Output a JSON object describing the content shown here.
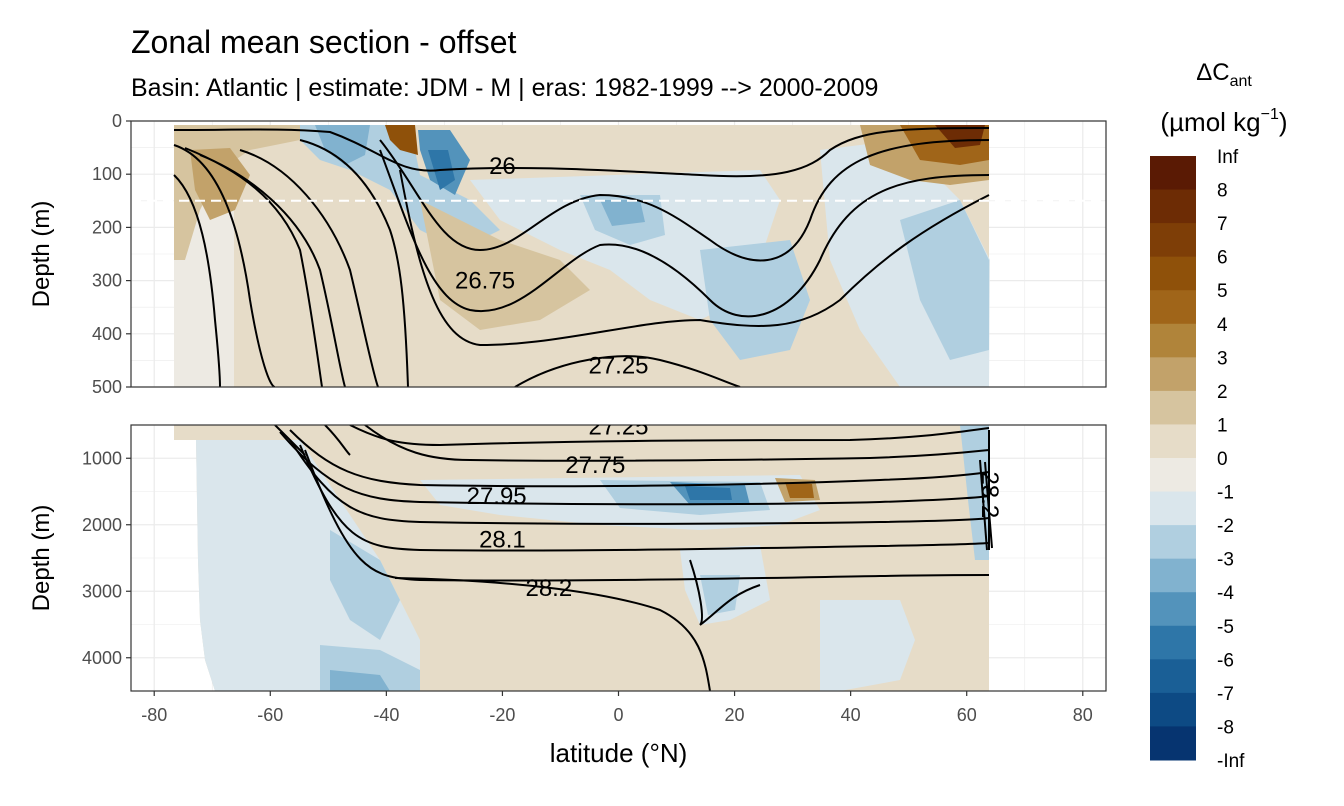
{
  "chart_data": {
    "type": "filled contour section",
    "title": "Zonal mean section - offset",
    "subtitle": "Basin: Atlantic | estimate: JDM - M | eras: 1982-1999 --> 2000-2009",
    "xlabel": "latitude (°N)",
    "ylabel": "Depth (m)",
    "x_ticks": [
      -80,
      -60,
      -40,
      -20,
      0,
      20,
      40,
      60,
      80
    ],
    "x_range": [
      -84,
      84
    ],
    "data_x_range": [
      -78,
      64.5
    ],
    "panels": [
      {
        "name": "upper",
        "y_range": [
          500,
          0
        ],
        "y_ticks": [
          0,
          100,
          200,
          300,
          400,
          500
        ],
        "reference_line_depth": 150,
        "isopycnal_labels": [
          {
            "text": "26",
            "lat": -20,
            "depth": 85
          },
          {
            "text": "26.75",
            "lat": -23,
            "depth": 300
          },
          {
            "text": "27.25",
            "lat": 0,
            "depth": 460
          }
        ]
      },
      {
        "name": "lower",
        "y_range": [
          4500,
          500
        ],
        "y_ticks": [
          1000,
          2000,
          3000,
          4000
        ],
        "isopycnal_labels": [
          {
            "text": "27.25",
            "lat": 0,
            "depth": 520
          },
          {
            "text": "27.75",
            "lat": -4,
            "depth": 1100
          },
          {
            "text": "27.95",
            "lat": -21,
            "depth": 1570
          },
          {
            "text": "28.1",
            "lat": -20,
            "depth": 2220
          },
          {
            "text": "28.2",
            "lat": -12,
            "depth": 2950
          },
          {
            "text": "28.2",
            "lat": 64,
            "depth": 1550
          }
        ]
      }
    ],
    "legend": {
      "title": "ΔC",
      "title_sub": "ant",
      "units_main": "(µmol kg",
      "units_sup": "−1",
      "units_end": ")",
      "position": "right",
      "levels": [
        {
          "label": "Inf",
          "color": "#5a1a04"
        },
        {
          "label": "8",
          "color": "#6d2c05"
        },
        {
          "label": "7",
          "color": "#7e3e07"
        },
        {
          "label": "6",
          "color": "#8f510a"
        },
        {
          "label": "5",
          "color": "#a06519"
        },
        {
          "label": "4",
          "color": "#b0843a"
        },
        {
          "label": "3",
          "color": "#c2a26a"
        },
        {
          "label": "2",
          "color": "#d6c49f"
        },
        {
          "label": "1",
          "color": "#e6dcc8"
        },
        {
          "label": "0",
          "color": "#edeae3"
        },
        {
          "label": "-1",
          "color": "#dae6ec"
        },
        {
          "label": "-2",
          "color": "#b0cfe0"
        },
        {
          "label": "-3",
          "color": "#81b2cf"
        },
        {
          "label": "-4",
          "color": "#5393bb"
        },
        {
          "label": "-5",
          "color": "#2e76a8"
        },
        {
          "label": "-6",
          "color": "#1a5f96"
        },
        {
          "label": "-7",
          "color": "#0d4a84"
        },
        {
          "label": "-8",
          "color": "#063470"
        },
        {
          "label": "-Inf",
          "color": "#021c5a"
        }
      ]
    }
  }
}
